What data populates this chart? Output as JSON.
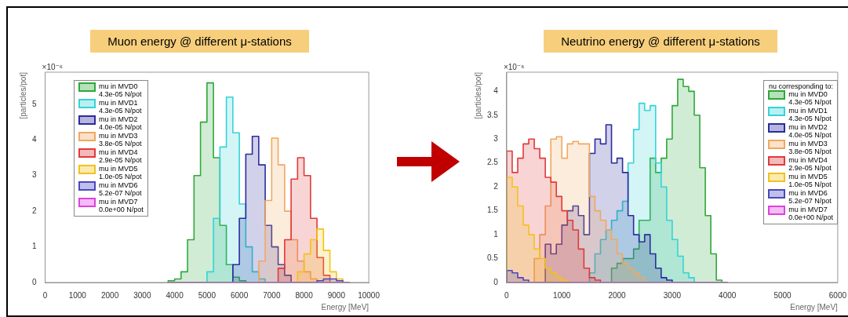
{
  "chart_data": [
    {
      "type": "histogram",
      "title": "Muon energy @ different μ-stations",
      "xlabel": "Energy [MeV]",
      "ylabel": "[particles/pot]",
      "annotations": [
        "×10⁻⁶"
      ],
      "bins": [
        3800,
        4000,
        4200,
        4400,
        4600,
        4800,
        5000,
        5200,
        5400,
        5600,
        5800,
        6000,
        6200,
        6400,
        6600,
        6800,
        7000,
        7200,
        7400,
        7600,
        7800,
        8000,
        8200,
        8400,
        8600,
        8800,
        9000,
        9200,
        9400
      ],
      "xlim": [
        0,
        10000
      ],
      "xticks": [
        0,
        1000,
        2000,
        3000,
        4000,
        5000,
        6000,
        7000,
        8000,
        9000,
        10000
      ],
      "ylim": [
        0,
        5.9
      ],
      "yticks": [
        0,
        1,
        2,
        3,
        4,
        5
      ],
      "grid": false,
      "legend": "top left",
      "series": [
        {
          "name": "mu in MVD0\n4.3e-05 N/pot",
          "color": "#2fa83a",
          "values": [
            0.05,
            0.1,
            0.3,
            1.2,
            3.0,
            4.5,
            5.6,
            3.5,
            1.6,
            0.5,
            0.15,
            0.05,
            0,
            0,
            0,
            0,
            0,
            0,
            0,
            0,
            0,
            0,
            0,
            0,
            0,
            0,
            0,
            0
          ]
        },
        {
          "name": "mu in MVD1\n4.3e-05 N/pot",
          "color": "#35d3d8",
          "values": [
            0,
            0,
            0,
            0,
            0,
            0,
            0.3,
            1.8,
            3.8,
            5.2,
            4.2,
            2.2,
            1.0,
            0.3,
            0.1,
            0,
            0,
            0,
            0,
            0,
            0,
            0,
            0,
            0,
            0,
            0,
            0,
            0
          ]
        },
        {
          "name": "mu in MVD2\n4.0e-05 N/pot",
          "color": "#2c2c9e",
          "values": [
            0,
            0,
            0,
            0,
            0,
            0,
            0,
            0,
            0,
            0,
            0.5,
            1.8,
            3.6,
            4.1,
            3.3,
            1.6,
            1.0,
            0.5,
            0.2,
            0,
            0,
            0,
            0,
            0,
            0,
            0,
            0,
            0
          ]
        },
        {
          "name": "mu in MVD3\n3.8e-05 N/pot",
          "color": "#f0a860",
          "values": [
            0,
            0,
            0,
            0,
            0,
            0,
            0,
            0,
            0,
            0,
            0,
            0,
            0,
            0,
            0.6,
            2.3,
            4.05,
            3.3,
            2.0,
            1.2,
            0.6,
            0.3,
            0.1,
            0,
            0,
            0,
            0,
            0
          ]
        },
        {
          "name": "mu in MVD4\n2.9e-05 N/pot",
          "color": "#e03a3a",
          "values": [
            0,
            0,
            0,
            0,
            0,
            0,
            0,
            0,
            0,
            0,
            0,
            0,
            0,
            0,
            0,
            0,
            0,
            0.4,
            1.2,
            2.9,
            3.5,
            3.0,
            1.8,
            0.7,
            0.2,
            0,
            0,
            0
          ]
        },
        {
          "name": "mu in MVD5\n1.0e-05 N/pot",
          "color": "#f2c21c",
          "values": [
            0,
            0,
            0,
            0,
            0,
            0,
            0,
            0,
            0,
            0,
            0,
            0,
            0,
            0,
            0,
            0,
            0,
            0,
            0,
            0,
            0.3,
            0.8,
            1.2,
            1.5,
            0.9,
            0.3,
            0.1,
            0
          ]
        },
        {
          "name": "mu in MVD6\n5.2e-07 N/pot",
          "color": "#4a48c0",
          "values": [
            0,
            0,
            0,
            0,
            0,
            0,
            0,
            0,
            0,
            0,
            0,
            0,
            0,
            0,
            0,
            0,
            0,
            0,
            0,
            0,
            0,
            0,
            0,
            0.05,
            0.1,
            0.1,
            0.05,
            0
          ]
        },
        {
          "name": "mu in MVD7\n0.0e+00 N/pot",
          "color": "#e040e0",
          "values": [
            0,
            0,
            0,
            0,
            0,
            0,
            0,
            0,
            0,
            0,
            0,
            0,
            0,
            0,
            0,
            0,
            0,
            0,
            0,
            0,
            0,
            0,
            0,
            0,
            0,
            0,
            0,
            0
          ]
        }
      ]
    },
    {
      "type": "histogram",
      "title": "Neutrino energy @ different μ-stations",
      "xlabel": "Energy [MeV]",
      "ylabel": "[particles/pot]",
      "annotations": [
        "×10⁻⁶"
      ],
      "legend_title": "nu corresponding to:",
      "bins": [
        0,
        100,
        200,
        300,
        400,
        500,
        600,
        700,
        800,
        900,
        1000,
        1100,
        1200,
        1300,
        1400,
        1500,
        1600,
        1700,
        1800,
        1900,
        2000,
        2100,
        2200,
        2300,
        2400,
        2500,
        2600,
        2700,
        2800,
        2900,
        3000,
        3100,
        3200,
        3300,
        3400,
        3500,
        3600,
        3700,
        3800,
        3900,
        4000
      ],
      "xlim": [
        0,
        6000
      ],
      "xticks": [
        0,
        1000,
        2000,
        3000,
        4000,
        5000,
        6000
      ],
      "ylim": [
        0,
        4.4
      ],
      "yticks": [
        0,
        0.5,
        1,
        1.5,
        2,
        2.5,
        3,
        3.5,
        4
      ],
      "grid": false,
      "legend": "top right",
      "series": [
        {
          "name": "mu in MVD0\n4.3e-05 N/pot",
          "color": "#2fa83a",
          "values": [
            0,
            0,
            0,
            0,
            0,
            0,
            0,
            0,
            0,
            0,
            0,
            0,
            0,
            0,
            0,
            0,
            0,
            0,
            0,
            0.3,
            0.4,
            0.5,
            0.5,
            0.7,
            1.3,
            1.3,
            2.6,
            2.3,
            2.6,
            3.0,
            3.7,
            4.25,
            4.1,
            4.0,
            3.5,
            2.4,
            1.4,
            0.6,
            0.05,
            0
          ]
        },
        {
          "name": "mu in MVD1\n4.3e-05 N/pot",
          "color": "#35d3d8",
          "values": [
            0,
            0,
            0,
            0,
            0,
            0,
            0,
            0,
            0,
            0,
            0,
            0,
            0,
            0,
            0,
            0.2,
            0.6,
            0.9,
            1.1,
            1.3,
            1.5,
            1.7,
            2.5,
            3.2,
            3.75,
            3.6,
            3.7,
            2.5,
            2.0,
            1.3,
            0.9,
            0.55,
            0.2,
            0.1,
            0,
            0,
            0,
            0,
            0,
            0
          ]
        },
        {
          "name": "mu in MVD2\n4.0e-05 N/pot",
          "color": "#2c2c9e",
          "values": [
            0,
            0,
            0,
            0,
            0,
            0,
            0,
            0.8,
            0.6,
            0.8,
            1.2,
            1.5,
            1.6,
            1.4,
            1.0,
            2.7,
            3.0,
            2.9,
            3.3,
            2.5,
            2.6,
            2.3,
            1.4,
            1.0,
            0.85,
            1.0,
            0.6,
            0.3,
            0.1,
            0.05,
            0,
            0,
            0,
            0,
            0,
            0,
            0,
            0,
            0,
            0
          ]
        },
        {
          "name": "mu in MVD3\n3.8e-05 N/pot",
          "color": "#f0a860",
          "values": [
            0,
            0,
            0,
            0,
            0,
            0.5,
            1.0,
            1.6,
            3.0,
            3.05,
            2.6,
            2.9,
            2.95,
            2.9,
            2.9,
            1.8,
            1.5,
            1.3,
            1.1,
            0.9,
            0.6,
            0.4,
            0.3,
            0.2,
            0.1,
            0,
            0,
            0,
            0,
            0,
            0,
            0,
            0,
            0,
            0,
            0,
            0,
            0,
            0,
            0
          ]
        },
        {
          "name": "mu in MVD4\n2.9e-05 N/pot",
          "color": "#e03a3a",
          "values": [
            2.75,
            2.3,
            2.6,
            2.9,
            3.0,
            2.8,
            2.6,
            2.2,
            2.1,
            1.8,
            1.5,
            1.3,
            1.1,
            0.7,
            0.3,
            0.1,
            0.05,
            0,
            0,
            0,
            0,
            0,
            0,
            0,
            0,
            0,
            0,
            0,
            0,
            0,
            0,
            0,
            0,
            0,
            0,
            0,
            0,
            0,
            0,
            0
          ]
        },
        {
          "name": "mu in MVD5\n1.0e-05 N/pot",
          "color": "#f2c21c",
          "values": [
            2.2,
            2.0,
            1.6,
            1.2,
            1.0,
            0.7,
            0.5,
            0.3,
            0.2,
            0.1,
            0.05,
            0,
            0,
            0,
            0,
            0,
            0,
            0,
            0,
            0,
            0,
            0,
            0,
            0,
            0,
            0,
            0,
            0,
            0,
            0,
            0,
            0,
            0,
            0,
            0,
            0,
            0,
            0,
            0,
            0
          ]
        },
        {
          "name": "mu in MVD6\n5.2e-07 N/pot",
          "color": "#4a48c0",
          "values": [
            0.25,
            0.2,
            0.1,
            0.05,
            0,
            0,
            0,
            0,
            0,
            0,
            0,
            0,
            0,
            0,
            0,
            0,
            0,
            0,
            0,
            0,
            0,
            0,
            0,
            0,
            0,
            0,
            0,
            0,
            0,
            0,
            0,
            0,
            0,
            0,
            0,
            0,
            0,
            0,
            0,
            0
          ]
        },
        {
          "name": "mu in MVD7\n0.0e+00 N/pot",
          "color": "#e040e0",
          "values": [
            0,
            0,
            0,
            0,
            0,
            0,
            0,
            0,
            0,
            0,
            0,
            0,
            0,
            0,
            0,
            0,
            0,
            0,
            0,
            0,
            0,
            0,
            0,
            0,
            0,
            0,
            0,
            0,
            0,
            0,
            0,
            0,
            0,
            0,
            0,
            0,
            0,
            0,
            0,
            0
          ]
        }
      ]
    }
  ]
}
